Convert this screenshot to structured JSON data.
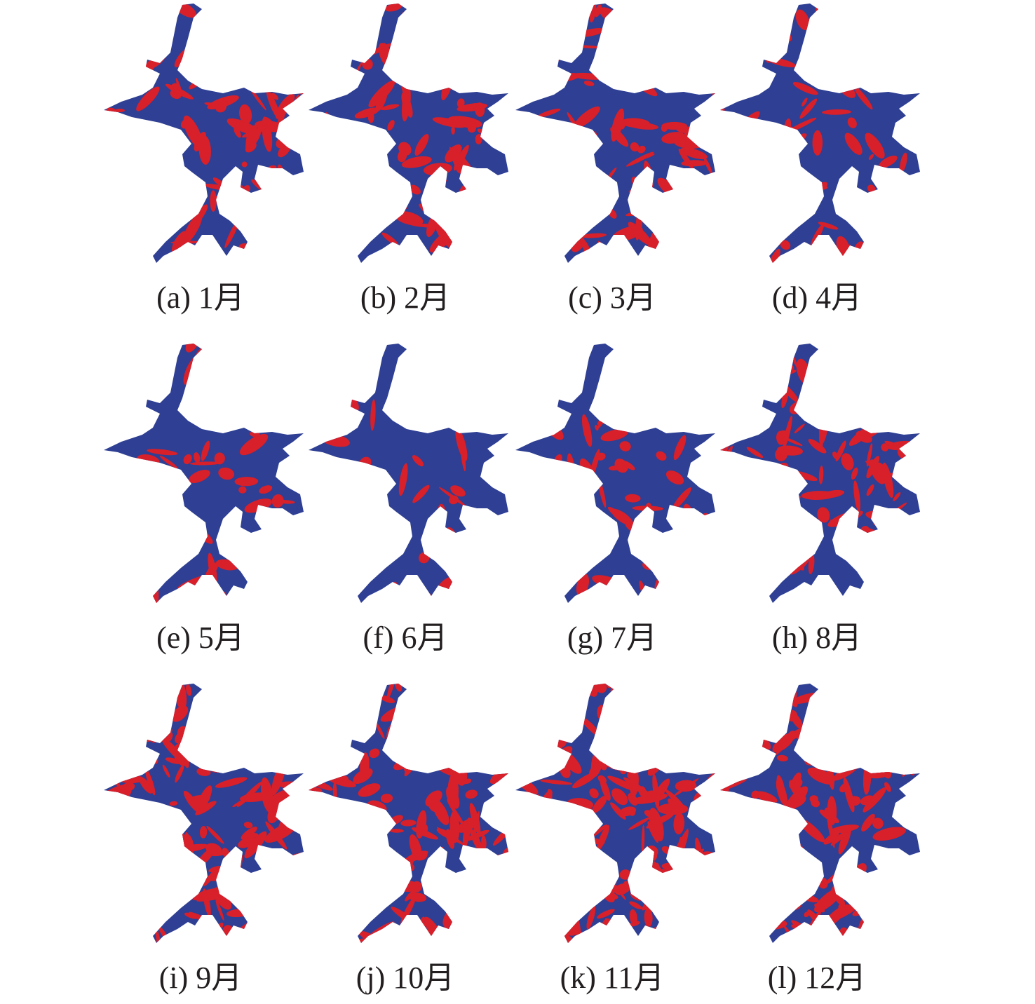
{
  "captions": [
    "(a) 1月",
    "(b) 2月",
    "(c) 3月",
    "(d) 4月",
    "(e) 5月",
    "(f) 6月",
    "(g) 7月",
    "(h) 8月",
    "(i) 9月",
    "(j) 10月",
    "(k) 11月",
    "(l) 12月"
  ]
}
